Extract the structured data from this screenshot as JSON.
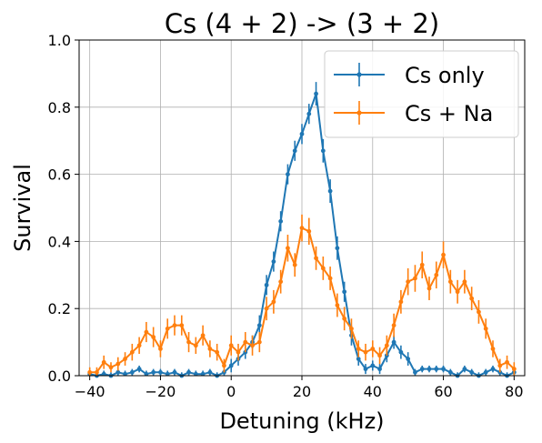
{
  "chart_data": {
    "type": "line",
    "title": "Cs (4 + 2) -> (3 + 2)",
    "xlabel": "Detuning (kHz)",
    "ylabel": "Survival",
    "xlim": [
      -43,
      83
    ],
    "ylim": [
      0,
      1.0
    ],
    "xticks": [
      -40,
      -20,
      0,
      20,
      40,
      60,
      80
    ],
    "yticks": [
      0.0,
      0.2,
      0.4,
      0.6,
      0.8,
      1.0
    ],
    "xtick_labels": [
      "−40",
      "−20",
      "0",
      "20",
      "40",
      "60",
      "80"
    ],
    "ytick_labels": [
      "0.0",
      "0.2",
      "0.4",
      "0.6",
      "0.8",
      "1.0"
    ],
    "grid": true,
    "legend_position": "top-right",
    "series": [
      {
        "name": "Cs only",
        "color": "#1f77b4",
        "x": [
          -40,
          -38,
          -36,
          -34,
          -32,
          -30,
          -28,
          -26,
          -24,
          -22,
          -20,
          -18,
          -16,
          -14,
          -12,
          -10,
          -8,
          -6,
          -4,
          -2,
          0,
          2,
          4,
          6,
          8,
          10,
          12,
          14,
          16,
          18,
          20,
          22,
          24,
          26,
          28,
          30,
          32,
          34,
          36,
          38,
          40,
          42,
          44,
          46,
          48,
          50,
          52,
          54,
          56,
          58,
          60,
          62,
          64,
          66,
          68,
          70,
          72,
          74,
          76,
          78,
          80
        ],
        "y": [
          0.005,
          0.0,
          0.005,
          0.0,
          0.01,
          0.005,
          0.01,
          0.02,
          0.005,
          0.01,
          0.01,
          0.005,
          0.01,
          0.0,
          0.01,
          0.005,
          0.005,
          0.01,
          0.0,
          0.01,
          0.03,
          0.05,
          0.07,
          0.1,
          0.15,
          0.27,
          0.34,
          0.46,
          0.6,
          0.67,
          0.72,
          0.78,
          0.84,
          0.67,
          0.55,
          0.38,
          0.25,
          0.12,
          0.05,
          0.02,
          0.03,
          0.02,
          0.06,
          0.1,
          0.07,
          0.05,
          0.01,
          0.02,
          0.02,
          0.02,
          0.02,
          0.01,
          0.0,
          0.02,
          0.01,
          0.0,
          0.01,
          0.02,
          0.01,
          0.0,
          0.01
        ],
        "err": [
          0.01,
          0.01,
          0.01,
          0.01,
          0.01,
          0.01,
          0.01,
          0.01,
          0.01,
          0.01,
          0.01,
          0.01,
          0.01,
          0.01,
          0.01,
          0.01,
          0.01,
          0.01,
          0.01,
          0.01,
          0.02,
          0.02,
          0.02,
          0.02,
          0.03,
          0.03,
          0.03,
          0.03,
          0.03,
          0.03,
          0.03,
          0.03,
          0.035,
          0.035,
          0.035,
          0.035,
          0.03,
          0.03,
          0.02,
          0.015,
          0.015,
          0.015,
          0.02,
          0.02,
          0.02,
          0.02,
          0.01,
          0.01,
          0.01,
          0.01,
          0.01,
          0.01,
          0.01,
          0.01,
          0.01,
          0.01,
          0.01,
          0.01,
          0.01,
          0.01,
          0.01
        ]
      },
      {
        "name": "Cs + Na",
        "color": "#ff7f0e",
        "x": [
          -40,
          -38,
          -36,
          -34,
          -32,
          -30,
          -28,
          -26,
          -24,
          -22,
          -20,
          -18,
          -16,
          -14,
          -12,
          -10,
          -8,
          -6,
          -4,
          -2,
          0,
          2,
          4,
          6,
          8,
          10,
          12,
          14,
          16,
          18,
          20,
          22,
          24,
          26,
          28,
          30,
          32,
          34,
          36,
          38,
          40,
          42,
          44,
          46,
          48,
          50,
          52,
          54,
          56,
          58,
          60,
          62,
          64,
          66,
          68,
          70,
          72,
          74,
          76,
          78,
          80
        ],
        "y": [
          0.01,
          0.01,
          0.04,
          0.025,
          0.035,
          0.05,
          0.07,
          0.09,
          0.13,
          0.115,
          0.08,
          0.14,
          0.15,
          0.15,
          0.1,
          0.09,
          0.12,
          0.08,
          0.07,
          0.03,
          0.09,
          0.07,
          0.1,
          0.09,
          0.1,
          0.2,
          0.22,
          0.28,
          0.38,
          0.33,
          0.44,
          0.43,
          0.35,
          0.32,
          0.29,
          0.21,
          0.17,
          0.14,
          0.08,
          0.07,
          0.08,
          0.06,
          0.09,
          0.15,
          0.22,
          0.28,
          0.29,
          0.33,
          0.26,
          0.3,
          0.36,
          0.28,
          0.25,
          0.28,
          0.23,
          0.19,
          0.14,
          0.08,
          0.03,
          0.04,
          0.02
        ],
        "err": [
          0.015,
          0.015,
          0.02,
          0.015,
          0.02,
          0.02,
          0.025,
          0.025,
          0.03,
          0.03,
          0.025,
          0.03,
          0.03,
          0.03,
          0.03,
          0.025,
          0.03,
          0.025,
          0.025,
          0.02,
          0.03,
          0.025,
          0.03,
          0.03,
          0.03,
          0.035,
          0.035,
          0.035,
          0.04,
          0.035,
          0.04,
          0.04,
          0.035,
          0.035,
          0.035,
          0.035,
          0.035,
          0.03,
          0.025,
          0.025,
          0.025,
          0.025,
          0.03,
          0.035,
          0.035,
          0.04,
          0.04,
          0.04,
          0.035,
          0.04,
          0.04,
          0.035,
          0.035,
          0.035,
          0.035,
          0.035,
          0.03,
          0.025,
          0.02,
          0.02,
          0.02
        ]
      }
    ]
  }
}
